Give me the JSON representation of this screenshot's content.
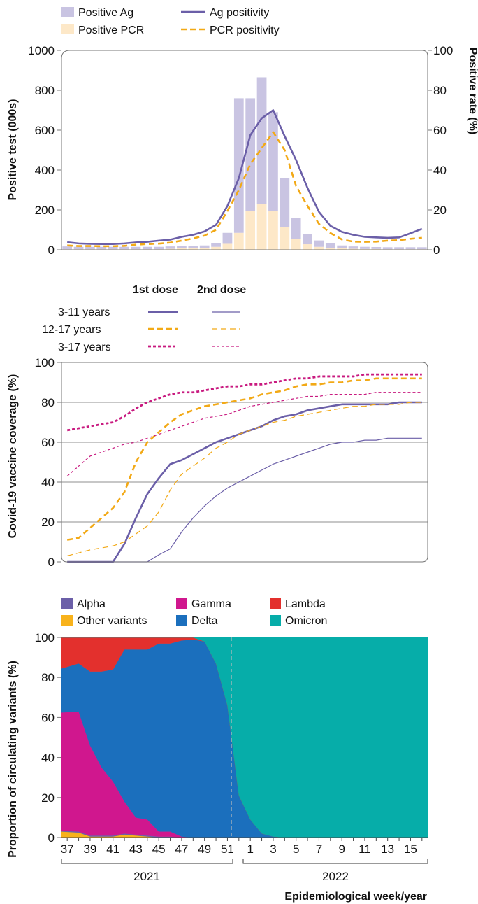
{
  "figure": {
    "weeks": [
      "37",
      "38",
      "39",
      "40",
      "41",
      "42",
      "43",
      "44",
      "45",
      "46",
      "47",
      "48",
      "49",
      "50",
      "51",
      "52",
      "1",
      "2",
      "3",
      "4",
      "5",
      "6",
      "7",
      "8",
      "9",
      "10",
      "11",
      "12",
      "13",
      "14",
      "15",
      "16"
    ],
    "x_tick_labels": [
      "37",
      "39",
      "41",
      "43",
      "45",
      "47",
      "49",
      "51",
      "1",
      "3",
      "5",
      "7",
      "9",
      "11",
      "13",
      "15"
    ],
    "year_labels": [
      "2021",
      "2022"
    ],
    "xlabel": "Epidemiological week/year"
  },
  "chart_data": [
    {
      "type": "bar",
      "id": "tests",
      "ylabel": "Positive test (000s)",
      "y2label": "Positive rate (%)",
      "ylim": [
        0,
        1000
      ],
      "y2lim": [
        0,
        100
      ],
      "y_ticks": [
        0,
        200,
        400,
        600,
        800,
        1000
      ],
      "y2_ticks": [
        0,
        20,
        40,
        60,
        80,
        100
      ],
      "grid": false,
      "legend": [
        {
          "label": "Positive Ag",
          "kind": "bar",
          "color": "#c9c4e2"
        },
        {
          "label": "Ag positivity",
          "kind": "line",
          "color": "#6b5fa8"
        },
        {
          "label": "Positive PCR",
          "kind": "bar",
          "color": "#fde8c8"
        },
        {
          "label": "PCR positivity",
          "kind": "dashed",
          "color": "#f2a916"
        }
      ],
      "stacked_bars": [
        {
          "name": "Positive PCR",
          "color": "#fde8c8",
          "values": [
            3,
            3,
            3,
            3,
            3,
            3,
            3,
            3,
            3,
            5,
            7,
            8,
            10,
            15,
            30,
            85,
            195,
            230,
            195,
            115,
            55,
            28,
            15,
            10,
            7,
            5,
            4,
            4,
            3,
            3,
            3,
            3
          ]
        },
        {
          "name": "Positive Ag",
          "color": "#c9c4e2",
          "values": [
            14,
            12,
            12,
            12,
            12,
            12,
            12,
            12,
            12,
            12,
            12,
            12,
            12,
            18,
            55,
            675,
            565,
            635,
            495,
            245,
            105,
            52,
            32,
            22,
            15,
            12,
            11,
            10,
            10,
            10,
            10,
            10
          ]
        }
      ],
      "lines": [
        {
          "name": "Ag positivity",
          "color": "#6b5fa8",
          "dash": false,
          "values": [
            3.8,
            3.2,
            3.0,
            2.9,
            2.9,
            3.2,
            3.7,
            4.0,
            4.6,
            5.1,
            6.5,
            7.5,
            9.2,
            12.5,
            22,
            36,
            57.5,
            66,
            70,
            57,
            45,
            31,
            19,
            12,
            9,
            7.5,
            6.5,
            6.2,
            6.0,
            6.2,
            8.3,
            10.5
          ]
        },
        {
          "name": "PCR positivity",
          "color": "#f2a916",
          "dash": true,
          "values": [
            2.2,
            1.9,
            1.9,
            1.8,
            1.8,
            2.0,
            2.6,
            2.9,
            3.1,
            3.6,
            4.6,
            5.7,
            7.1,
            10,
            19.5,
            30,
            43,
            51,
            59,
            50,
            32,
            22,
            13,
            8.4,
            5.2,
            4.1,
            4.0,
            4.1,
            4.6,
            4.8,
            5.5,
            6.0
          ]
        }
      ]
    },
    {
      "type": "line",
      "id": "coverage",
      "ylabel": "Covid-19 vaccine coverage (%)",
      "ylim": [
        0,
        100
      ],
      "y_ticks": [
        0,
        20,
        40,
        60,
        80,
        100
      ],
      "grid": true,
      "legend_header": {
        "first": "1st dose",
        "second": "2nd dose"
      },
      "legend_rows": [
        "3-11 years",
        "12-17 years",
        "3-17 years"
      ],
      "series": [
        {
          "name": "3-11 years 1st dose",
          "row": 0,
          "dose": 1,
          "color": "#6b5fa8",
          "dash": "",
          "width": 2.6,
          "values": [
            0,
            0,
            0,
            0,
            0,
            9,
            22,
            34,
            42,
            49,
            51,
            54,
            57,
            60,
            62,
            64,
            66,
            68,
            71,
            73,
            74,
            76,
            77,
            78,
            79,
            79,
            79,
            79,
            79,
            80,
            80,
            80
          ]
        },
        {
          "name": "3-11 years 2nd dose",
          "row": 0,
          "dose": 2,
          "color": "#6b5fa8",
          "dash": "",
          "width": 1.2,
          "values": [
            0,
            0,
            0,
            0,
            0,
            0,
            0,
            0,
            3.5,
            6.5,
            15,
            22,
            28,
            33,
            37,
            40,
            43,
            46,
            49,
            51,
            53,
            55,
            57,
            59,
            60,
            60,
            61,
            61,
            62,
            62,
            62,
            62
          ]
        },
        {
          "name": "12-17 years 1st dose",
          "row": 1,
          "dose": 1,
          "color": "#f2a916",
          "dash": "8,5",
          "width": 2.6,
          "values": [
            11,
            12,
            17,
            22,
            27,
            35,
            50,
            60,
            65,
            70,
            74,
            76,
            78,
            79,
            80,
            81,
            82,
            84,
            85,
            86,
            88,
            89,
            89,
            90,
            90,
            91,
            91,
            92,
            92,
            92,
            92,
            92
          ]
        },
        {
          "name": "12-17 years 2nd dose",
          "row": 1,
          "dose": 2,
          "color": "#f2a916",
          "dash": "8,5",
          "width": 1.2,
          "values": [
            3,
            4.5,
            6,
            7,
            8,
            10,
            14,
            18,
            25,
            36,
            44,
            48,
            52,
            57,
            60,
            64,
            66,
            68,
            70,
            71,
            73,
            74,
            75,
            76,
            77,
            78,
            78,
            79,
            79,
            79,
            80,
            80
          ]
        },
        {
          "name": "3-17 years 1st dose",
          "row": 2,
          "dose": 1,
          "color": "#c8197f",
          "dash": "4,3",
          "width": 2.8,
          "values": [
            66,
            67,
            68,
            69,
            70,
            73,
            77,
            80,
            82,
            84,
            85,
            85,
            86,
            87,
            88,
            88,
            89,
            89,
            90,
            91,
            92,
            92,
            93,
            93,
            93,
            93,
            94,
            94,
            94,
            94,
            94,
            94
          ]
        },
        {
          "name": "3-17 years 2nd dose",
          "row": 2,
          "dose": 2,
          "color": "#c8197f",
          "dash": "4,3",
          "width": 1.2,
          "values": [
            43,
            48,
            53,
            55,
            57,
            59,
            60,
            62,
            64,
            66,
            68,
            70,
            72,
            73,
            74,
            76,
            78,
            79,
            80,
            81,
            82,
            83,
            83,
            84,
            84,
            84,
            84,
            85,
            85,
            85,
            85,
            85
          ]
        }
      ]
    },
    {
      "type": "area",
      "id": "variants",
      "ylabel": "Proportion of circulating variants (%)",
      "ylim": [
        0,
        100
      ],
      "y_ticks": [
        0,
        20,
        40,
        60,
        80,
        100
      ],
      "grid": false,
      "stacked": true,
      "legend": [
        {
          "label": "Alpha",
          "color": "#6b5fa8"
        },
        {
          "label": "Gamma",
          "color": "#d0178e"
        },
        {
          "label": "Lambda",
          "color": "#e3302d"
        },
        {
          "label": "Other variants",
          "color": "#f8b21b"
        },
        {
          "label": "Delta",
          "color": "#1b6fbd"
        },
        {
          "label": "Omicron",
          "color": "#06ada9"
        }
      ],
      "series": [
        {
          "name": "Other variants",
          "color": "#f8b21b",
          "values": [
            3,
            2.5,
            0.5,
            0.5,
            0.5,
            1.5,
            1,
            0.5,
            0,
            0,
            0,
            0,
            0,
            0,
            0,
            0,
            0,
            0,
            0,
            0,
            0,
            0,
            0,
            0,
            0,
            0,
            0,
            0,
            0,
            0,
            0,
            0
          ]
        },
        {
          "name": "Alpha",
          "color": "#6b5fa8",
          "values": [
            0.5,
            0.5,
            0.5,
            0.5,
            0.5,
            0.5,
            0.5,
            0.5,
            0.5,
            0.5,
            0,
            0,
            0,
            0,
            0,
            0,
            0,
            0,
            0,
            0,
            0,
            0,
            0,
            0,
            0,
            0,
            0,
            0,
            0,
            0,
            0,
            0
          ]
        },
        {
          "name": "Gamma",
          "color": "#d0178e",
          "values": [
            59,
            60,
            45,
            34,
            27,
            16,
            8.5,
            8,
            2.5,
            2.5,
            0.5,
            0,
            0,
            0,
            0,
            0,
            0,
            0,
            0,
            0,
            0,
            0,
            0,
            0,
            0,
            0,
            0,
            0,
            0,
            0,
            0,
            0
          ]
        },
        {
          "name": "Delta",
          "color": "#1b6fbd",
          "values": [
            22,
            24,
            37,
            48,
            56,
            76,
            84,
            85,
            94,
            94,
            98,
            99,
            98,
            87,
            66,
            21,
            9,
            2,
            0.5,
            0,
            0,
            0,
            0,
            0,
            0,
            0,
            0,
            0,
            0,
            0,
            0,
            0
          ]
        },
        {
          "name": "Lambda",
          "color": "#e3302d",
          "values": [
            15.5,
            13,
            17,
            17,
            16,
            6,
            6,
            6.5,
            3,
            3,
            1.5,
            1,
            0,
            0,
            0,
            0,
            0,
            0,
            0,
            0,
            0,
            0,
            0,
            0,
            0,
            0,
            0,
            0,
            0,
            0,
            0,
            0
          ]
        },
        {
          "name": "Omicron",
          "color": "#06ada9",
          "values": [
            0,
            0,
            0,
            0,
            0,
            0,
            0,
            0,
            0,
            0,
            0,
            0,
            2,
            13,
            34,
            79,
            91,
            98,
            99.5,
            100,
            100,
            100,
            100,
            100,
            100,
            100,
            100,
            100,
            100,
            100,
            100,
            100
          ]
        }
      ]
    }
  ]
}
